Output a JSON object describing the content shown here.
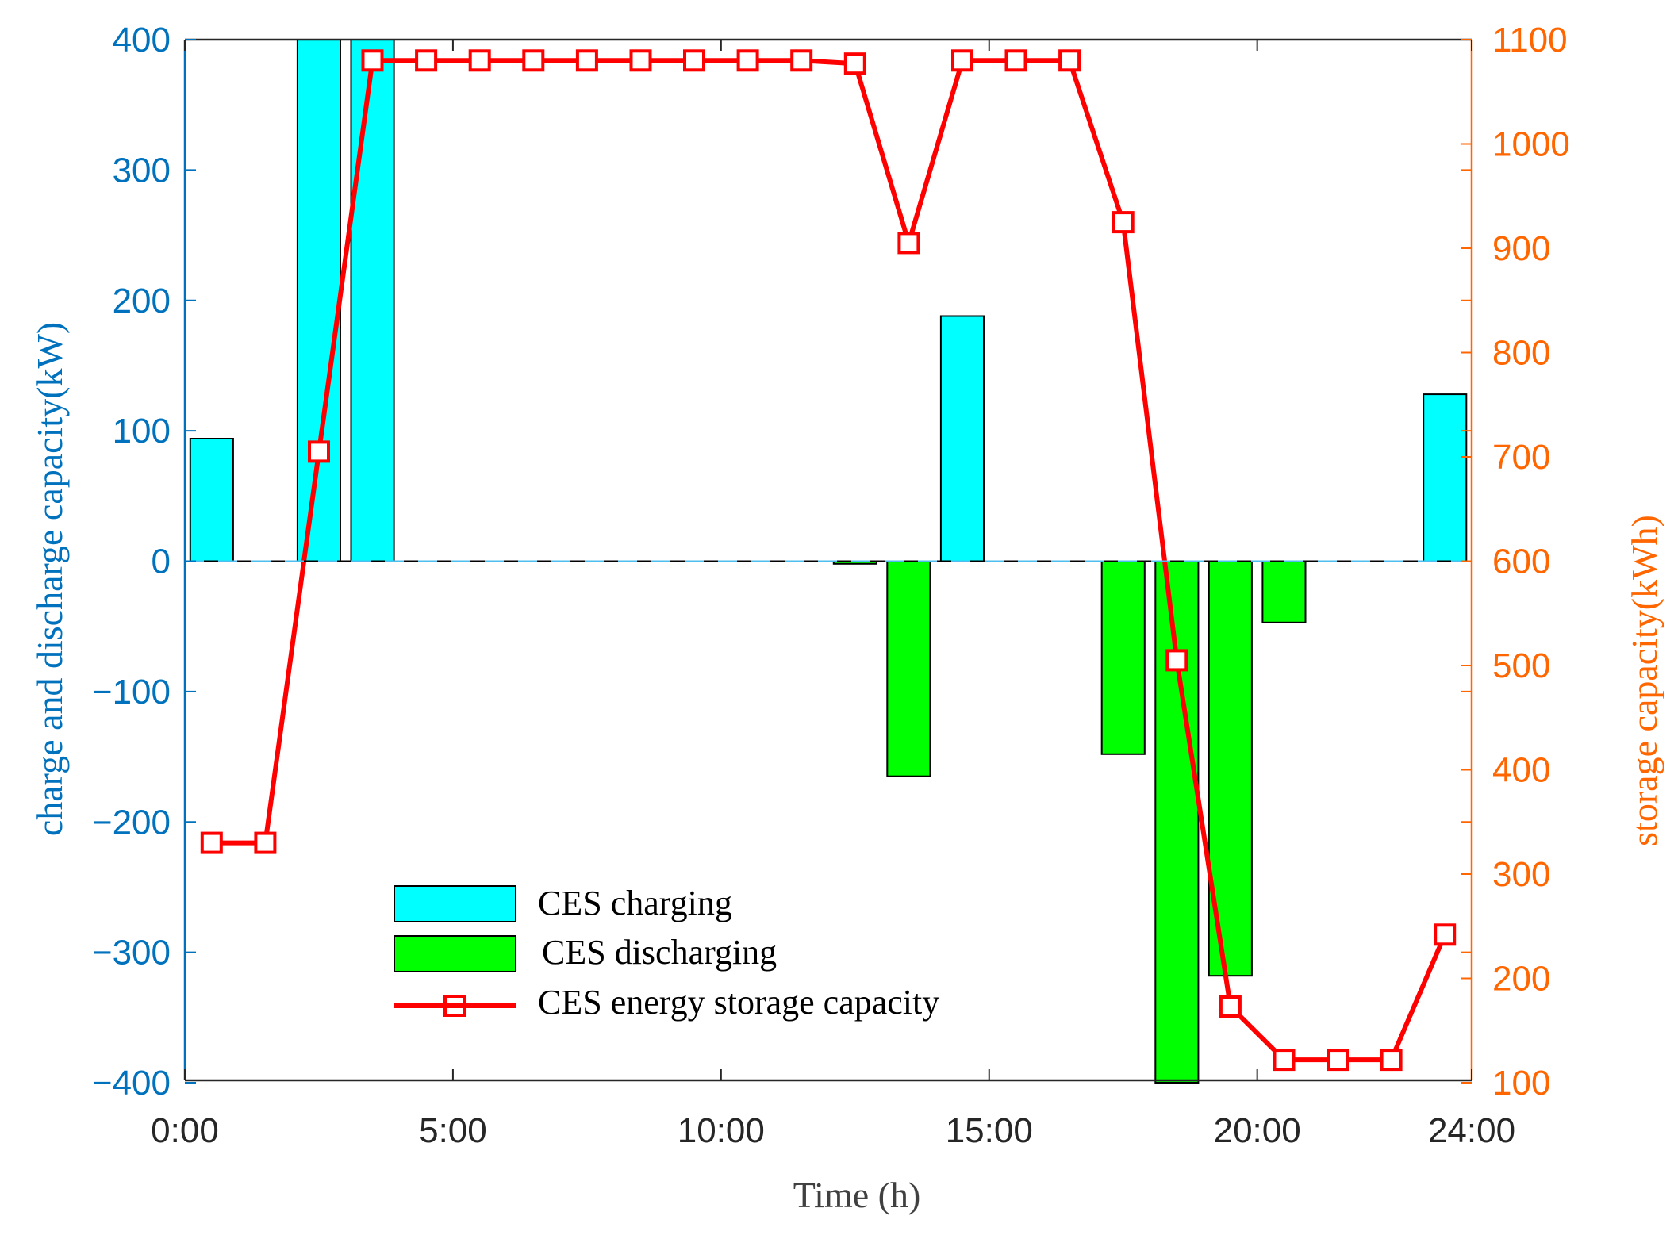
{
  "chart_data": {
    "type": "bar",
    "x_ticks": [
      "0:00",
      "5:00",
      "10:00",
      "15:00",
      "20:00",
      "24:00"
    ],
    "xlabel": "Time (h)",
    "ylabel_left": "charge and discharge capacity(kW)",
    "ylabel_right": "storage capacity(kWh)",
    "ylim_left": [
      -400,
      400
    ],
    "ylim_right": [
      100,
      1100
    ],
    "xlim": [
      0,
      24
    ],
    "left_ticks": [
      "-400",
      "-300",
      "-200",
      "-100",
      "0",
      "100",
      "200",
      "300",
      "400"
    ],
    "right_ticks": [
      "100",
      "200",
      "300",
      "400",
      "500",
      "600",
      "700",
      "800",
      "900",
      "1000",
      "1100"
    ],
    "hours": [
      1,
      2,
      3,
      4,
      5,
      6,
      7,
      8,
      9,
      10,
      11,
      12,
      13,
      14,
      15,
      16,
      17,
      18,
      19,
      20,
      21,
      22,
      23,
      24
    ],
    "series": [
      {
        "name": "CES charging",
        "axis": "left",
        "color": "#00FFFF",
        "values": [
          94,
          0,
          400,
          400,
          0,
          0,
          0,
          0,
          0,
          0,
          0,
          0,
          0,
          0,
          188,
          0,
          0,
          0,
          0,
          0,
          0,
          0,
          0,
          128
        ]
      },
      {
        "name": "CES discharging",
        "axis": "left",
        "color": "#00FF00",
        "values": [
          0,
          0,
          0,
          0,
          0,
          0,
          0,
          0,
          0,
          0,
          0,
          0,
          -2,
          -165,
          0,
          0,
          0,
          -148,
          -400,
          -318,
          -47,
          0,
          0,
          0
        ]
      },
      {
        "name": "CES energy storage capacity",
        "axis": "right",
        "type": "line",
        "marker": "square",
        "color": "#FF0000",
        "values": [
          330,
          330,
          705,
          1080,
          1080,
          1080,
          1080,
          1080,
          1080,
          1080,
          1080,
          1080,
          1077,
          905,
          1080,
          1080,
          1080,
          925,
          505,
          173,
          122,
          122,
          122,
          242
        ]
      }
    ],
    "legend": [
      "CES charging",
      "CES discharging",
      "CES energy storage capacity"
    ],
    "legend_position": "lower-left",
    "grid": false,
    "colors": {
      "left_axis": "#0072BD",
      "right_axis": "#FF6600",
      "x_axis": "#262626",
      "zero_line": "#4DBEEE"
    }
  }
}
